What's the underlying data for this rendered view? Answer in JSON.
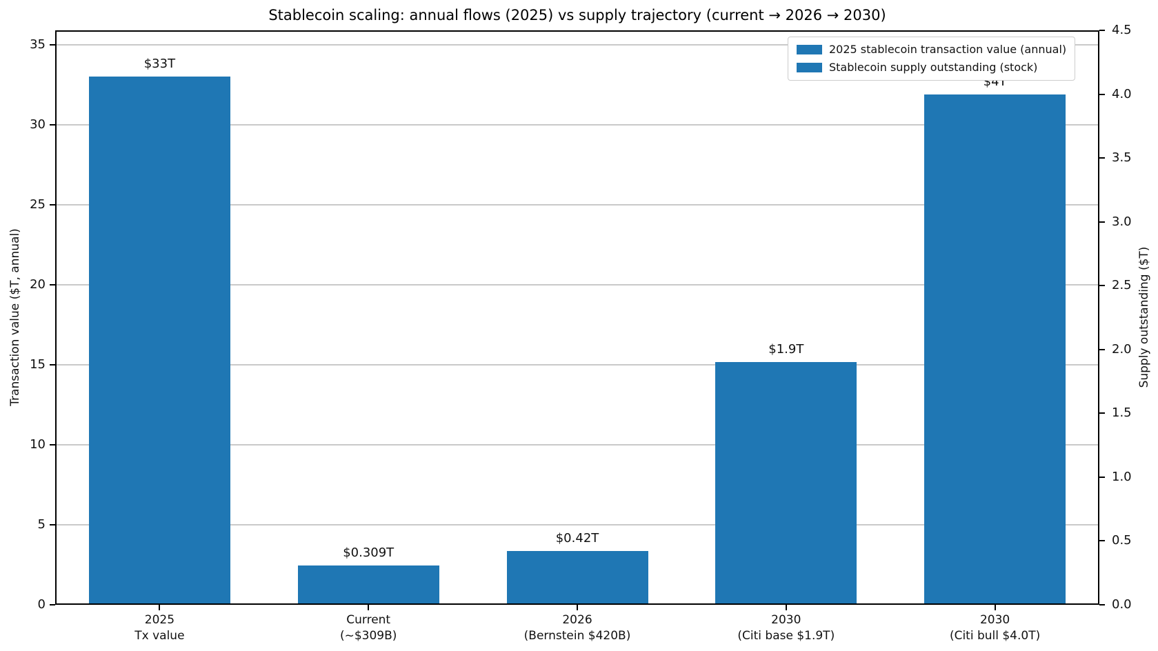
{
  "chart_data": {
    "type": "bar",
    "title": "Stablecoin scaling: annual flows (2025) vs supply trajectory (current → 2026 → 2030)",
    "categories": [
      "2025\nTx value",
      "Current\n(~$309B)",
      "2026\n(Bernstein $420B)",
      "2030\n(Citi base $1.9T)",
      "2030\n(Citi bull $4.0T)"
    ],
    "bar_color": "#1f77b4",
    "grid": {
      "axis": "y",
      "on": true,
      "color": "#c9c9c9"
    },
    "left_axis": {
      "label": "Transaction value ($T, annual)",
      "ticks": [
        0,
        5,
        10,
        15,
        20,
        25,
        30,
        35
      ],
      "tick_labels": [
        "0",
        "5",
        "10",
        "15",
        "20",
        "25",
        "30",
        "35"
      ],
      "range": [
        0,
        35.9
      ]
    },
    "right_axis": {
      "label": "Supply outstanding ($T)",
      "ticks": [
        0,
        0.5,
        1.0,
        1.5,
        2.0,
        2.5,
        3.0,
        3.5,
        4.0,
        4.5
      ],
      "tick_labels": [
        "0.0",
        "0.5",
        "1.0",
        "1.5",
        "2.0",
        "2.5",
        "3.0",
        "3.5",
        "4.0",
        "4.5"
      ],
      "range": [
        0,
        4.5
      ]
    },
    "legend": {
      "position": "upper-right",
      "entries": [
        "2025 stablecoin transaction value (annual)",
        "Stablecoin supply outstanding (stock)"
      ]
    },
    "series": [
      {
        "name": "2025 stablecoin transaction value (annual)",
        "axis": "left",
        "data": [
          {
            "category_index": 0,
            "value": 33,
            "label": "$33T"
          }
        ]
      },
      {
        "name": "Stablecoin supply outstanding (stock)",
        "axis": "right",
        "data": [
          {
            "category_index": 1,
            "value": 0.309,
            "label": "$0.309T"
          },
          {
            "category_index": 2,
            "value": 0.42,
            "label": "$0.42T"
          },
          {
            "category_index": 3,
            "value": 1.9,
            "label": "$1.9T"
          },
          {
            "category_index": 4,
            "value": 4.0,
            "label": "$4T"
          }
        ]
      }
    ]
  }
}
